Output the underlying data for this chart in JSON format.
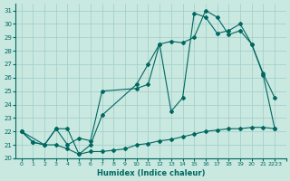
{
  "xlabel": "Humidex (Indice chaleur)",
  "ylabel": "",
  "background_color": "#c8e8e0",
  "grid_color": "#a0ccc8",
  "line_color": "#006860",
  "xlim": [
    -0.5,
    23
  ],
  "ylim": [
    20,
    31.5
  ],
  "yticks": [
    20,
    21,
    22,
    23,
    24,
    25,
    26,
    27,
    28,
    29,
    30,
    31
  ],
  "xticks": [
    0,
    1,
    2,
    3,
    4,
    5,
    6,
    7,
    8,
    9,
    10,
    11,
    12,
    13,
    14,
    15,
    16,
    17,
    18,
    19,
    20,
    21,
    22,
    23
  ],
  "xtick_labels": [
    "0",
    "1",
    "2",
    "3",
    "4",
    "5",
    "6",
    "7",
    "8",
    "9",
    "10",
    "11",
    "12",
    "13",
    "14",
    "15",
    "16",
    "17",
    "18",
    "19",
    "20",
    "21",
    "2223",
    ""
  ],
  "series1_x": [
    0,
    1,
    2,
    3,
    4,
    5,
    6,
    7,
    8,
    9,
    10,
    11,
    12,
    13,
    14,
    15,
    16,
    17,
    18,
    19,
    20,
    21,
    22
  ],
  "series1_y": [
    22.0,
    21.2,
    21.0,
    21.0,
    20.7,
    20.3,
    20.5,
    20.5,
    20.6,
    20.7,
    21.0,
    21.1,
    21.3,
    21.4,
    21.6,
    21.8,
    22.0,
    22.1,
    22.2,
    22.2,
    22.3,
    22.3,
    22.2
  ],
  "series2_x": [
    0,
    1,
    2,
    3,
    4,
    5,
    6,
    7,
    10,
    11,
    12,
    13,
    14,
    15,
    16,
    17,
    18,
    19,
    20,
    21,
    22
  ],
  "series2_y": [
    22.0,
    21.2,
    21.0,
    22.2,
    22.2,
    20.3,
    21.0,
    23.2,
    25.5,
    27.0,
    28.5,
    28.7,
    28.6,
    29.0,
    31.0,
    30.5,
    29.2,
    29.5,
    28.5,
    26.2,
    22.2
  ],
  "series3_x": [
    0,
    2,
    3,
    4,
    5,
    6,
    7,
    10,
    11,
    12,
    13,
    14,
    15,
    16,
    17,
    18,
    19,
    20,
    21,
    22
  ],
  "series3_y": [
    22.0,
    21.0,
    22.2,
    21.0,
    21.5,
    21.3,
    25.0,
    25.2,
    25.5,
    28.5,
    23.5,
    24.5,
    30.8,
    30.5,
    29.3,
    29.5,
    30.0,
    28.5,
    26.3,
    24.5
  ]
}
